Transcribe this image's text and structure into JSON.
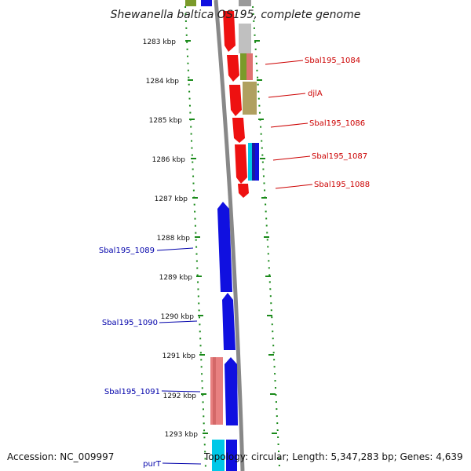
{
  "title": "Shewanella baltica OS195, complete genome",
  "accession": "Accession: NC_009997",
  "summary": "Topology: circular; Length: 5,347,283 bp; Genes: 4,639",
  "colors": {
    "forward_label": "#cc0000",
    "reverse_label": "#0000aa",
    "tick": "#1a8a1a",
    "backbone": "#888888"
  },
  "ticks": [
    "1283 kbp",
    "1284 kbp",
    "1285 kbp",
    "1286 kbp",
    "1287 kbp",
    "1288 kbp",
    "1289 kbp",
    "1290 kbp",
    "1291 kbp",
    "1292 kbp",
    "1293 kbp"
  ],
  "forward_genes": [
    "Sbal195_1084",
    "djlA",
    "Sbal195_1086",
    "Sbal195_1087",
    "Sbal195_1088"
  ],
  "reverse_genes": [
    "Sbal195_1089",
    "Sbal195_1090",
    "Sbal195_1091",
    "purT"
  ]
}
